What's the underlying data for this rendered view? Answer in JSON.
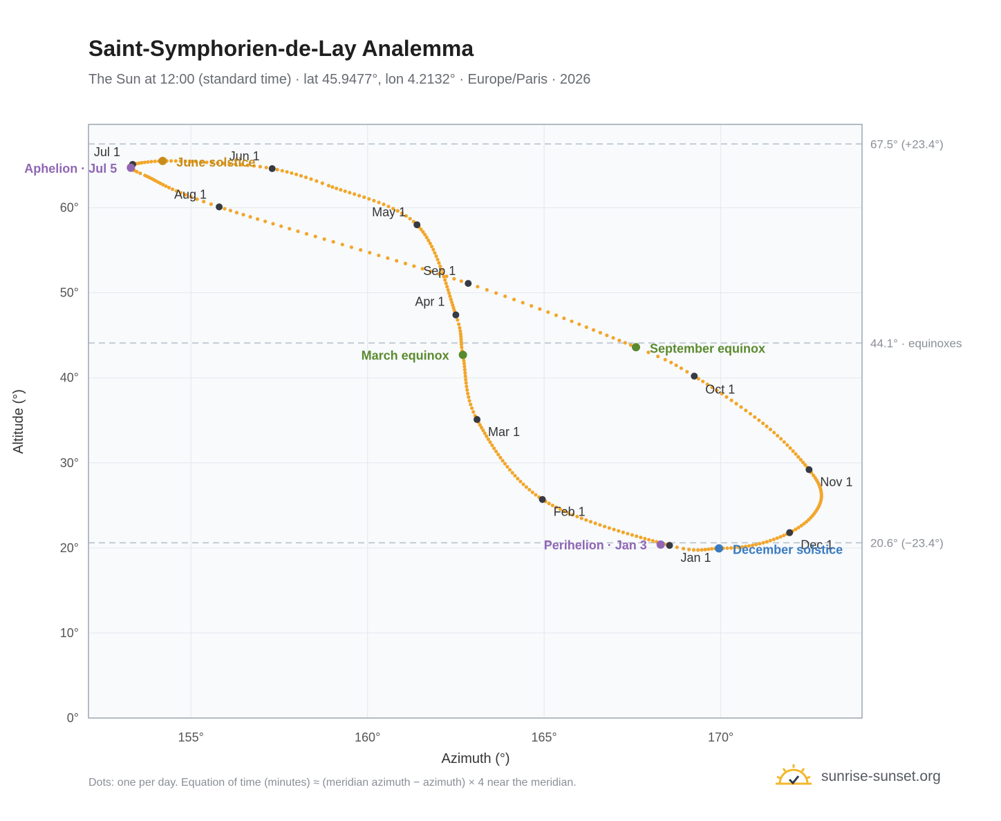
{
  "title": "Saint-Symphorien-de-Lay Analemma",
  "subtitle": "The Sun at 12:00 (standard time) · lat 45.9477°, lon 4.2132° · Europe/Paris · 2026",
  "footnote": "Dots: one per day. Equation of time (minutes) ≈ (meridian azimuth − azimuth) × 4 near the meridian.",
  "brand": {
    "text": "sunrise-sunset.org",
    "icon": "sun-logo-icon"
  },
  "colors": {
    "curve": "#f2a62a",
    "month_dot": "#363a42",
    "solstice_june": "#c98c1a",
    "solstice_december": "#3a7bc0",
    "equinox": "#5b8a2e",
    "apsis": "#9066b5",
    "reference_line": "#b7c1cc",
    "plot_bg": "#f8fafc"
  },
  "chart_data": {
    "type": "scatter",
    "xlabel": "Azimuth (°)",
    "ylabel": "Altitude (°)",
    "xlim": [
      152.1,
      174.0
    ],
    "ylim": [
      0,
      69.8
    ],
    "x_ticks": [
      155,
      160,
      165,
      170
    ],
    "x_tick_labels": [
      "155°",
      "160°",
      "165°",
      "170°"
    ],
    "y_ticks": [
      0,
      10,
      20,
      30,
      40,
      50,
      60
    ],
    "y_tick_labels": [
      "0°",
      "10°",
      "20°",
      "30°",
      "40°",
      "50°",
      "60°"
    ],
    "grid": true,
    "reference_lines": [
      {
        "y": 67.5,
        "label": "67.5° (+23.4°)"
      },
      {
        "y": 44.1,
        "label": "44.1° · equinoxes"
      },
      {
        "y": 20.6,
        "label": "20.6° (−23.4°)"
      }
    ],
    "anchors": [
      {
        "day": 1,
        "az": 168.55,
        "alt": 20.3
      },
      {
        "day": 32,
        "az": 164.95,
        "alt": 25.7
      },
      {
        "day": 60,
        "az": 163.1,
        "alt": 35.1
      },
      {
        "day": 79,
        "az": 162.7,
        "alt": 42.7
      },
      {
        "day": 91,
        "az": 162.5,
        "alt": 47.4
      },
      {
        "day": 121,
        "az": 161.4,
        "alt": 58.0
      },
      {
        "day": 141,
        "az": 158.9,
        "alt": 62.6
      },
      {
        "day": 152,
        "az": 157.3,
        "alt": 64.6
      },
      {
        "day": 162,
        "az": 155.6,
        "alt": 65.3
      },
      {
        "day": 172,
        "az": 154.2,
        "alt": 65.5
      },
      {
        "day": 182,
        "az": 153.35,
        "alt": 65.1
      },
      {
        "day": 186,
        "az": 153.3,
        "alt": 64.7
      },
      {
        "day": 194,
        "az": 153.7,
        "alt": 63.8
      },
      {
        "day": 213,
        "az": 155.8,
        "alt": 60.1
      },
      {
        "day": 244,
        "az": 162.85,
        "alt": 51.1
      },
      {
        "day": 266,
        "az": 167.6,
        "alt": 43.6
      },
      {
        "day": 274,
        "az": 169.25,
        "alt": 40.2
      },
      {
        "day": 290,
        "az": 171.3,
        "alt": 34.3
      },
      {
        "day": 305,
        "az": 172.5,
        "alt": 29.2
      },
      {
        "day": 316,
        "az": 172.85,
        "alt": 26.3
      },
      {
        "day": 326,
        "az": 172.6,
        "alt": 23.8
      },
      {
        "day": 335,
        "az": 171.95,
        "alt": 21.8
      },
      {
        "day": 345,
        "az": 171.0,
        "alt": 20.4
      },
      {
        "day": 355,
        "az": 169.95,
        "alt": 19.95
      },
      {
        "day": 366,
        "az": 168.55,
        "alt": 20.3
      }
    ],
    "months": [
      {
        "label": "Jan 1",
        "az": 168.55,
        "alt": 20.3
      },
      {
        "label": "Feb 1",
        "az": 164.95,
        "alt": 25.7
      },
      {
        "label": "Mar 1",
        "az": 163.1,
        "alt": 35.1
      },
      {
        "label": "Apr 1",
        "az": 162.5,
        "alt": 47.4
      },
      {
        "label": "May 1",
        "az": 161.4,
        "alt": 58.0
      },
      {
        "label": "Jun 1",
        "az": 157.3,
        "alt": 64.6
      },
      {
        "label": "Jul 1",
        "az": 153.35,
        "alt": 65.1
      },
      {
        "label": "Aug 1",
        "az": 155.8,
        "alt": 60.1
      },
      {
        "label": "Sep 1",
        "az": 162.85,
        "alt": 51.1
      },
      {
        "label": "Oct 1",
        "az": 169.25,
        "alt": 40.2
      },
      {
        "label": "Nov 1",
        "az": 172.5,
        "alt": 29.2
      },
      {
        "label": "Dec 1",
        "az": 171.95,
        "alt": 21.8
      }
    ],
    "events": [
      {
        "label": "June solstice",
        "az": 154.2,
        "alt": 65.5,
        "color": "#c98c1a"
      },
      {
        "label": "December solstice",
        "az": 169.95,
        "alt": 19.95,
        "color": "#3a7bc0"
      },
      {
        "label": "March equinox",
        "az": 162.7,
        "alt": 42.7,
        "color": "#5b8a2e"
      },
      {
        "label": "September equinox",
        "az": 167.6,
        "alt": 43.6,
        "color": "#5b8a2e"
      },
      {
        "label": "Aphelion · Jul 5",
        "az": 153.3,
        "alt": 64.7,
        "color": "#9066b5"
      },
      {
        "label": "Perihelion · Jan 3",
        "az": 168.3,
        "alt": 20.4,
        "color": "#9066b5"
      }
    ]
  }
}
